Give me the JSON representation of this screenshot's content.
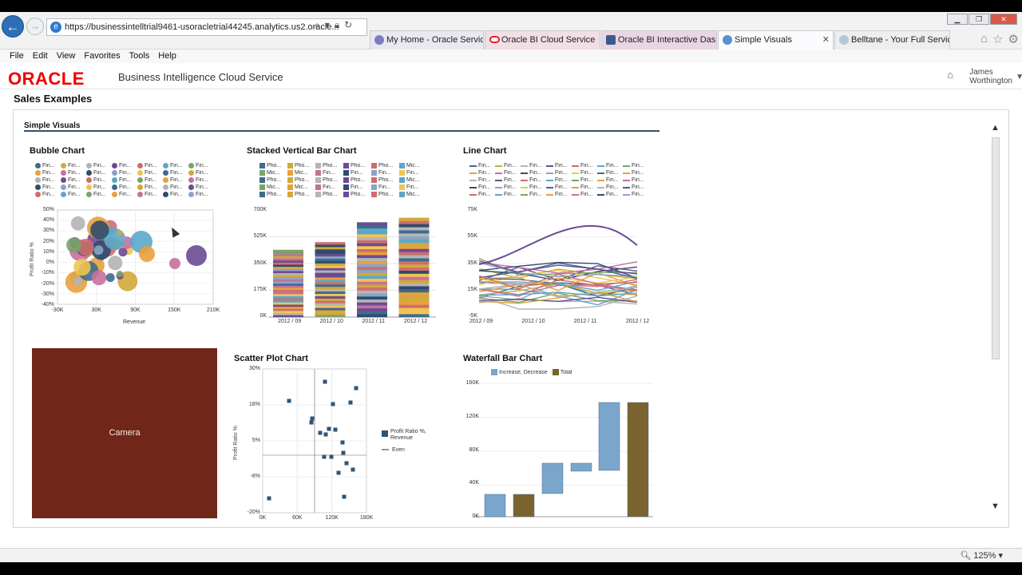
{
  "browser": {
    "url": "https://businessintelltrial9461-usoracletrial44245.analytics.us2.oracle...",
    "tabs": [
      {
        "label": "My Home - Oracle Services",
        "active": false
      },
      {
        "label": "Oracle BI Cloud Service",
        "active": false
      },
      {
        "label": "Oracle BI Interactive Dash...",
        "active": false
      },
      {
        "label": "Simple Visuals",
        "active": true
      },
      {
        "label": "Belltane - Your Full Servic...",
        "active": false
      }
    ],
    "menu": [
      "File",
      "Edit",
      "View",
      "Favorites",
      "Tools",
      "Help"
    ],
    "zoom": "125%"
  },
  "app": {
    "logo": "ORACLE",
    "title": "Business Intelligence Cloud Service",
    "user_first": "James",
    "user_last": "Worthington"
  },
  "page": {
    "title": "Sales Examples",
    "section": "Simple Visuals"
  },
  "bubble": {
    "title": "Bubble Chart",
    "legend_label": "Fin...",
    "xlabel": "Revenue",
    "ylabel": "Profit Ratio %",
    "xticks": [
      "-30K",
      "30K",
      "90K",
      "150K",
      "210K"
    ],
    "yticks": [
      "50%",
      "40%",
      "30%",
      "20%",
      "10%",
      "0%",
      "-10%",
      "-20%",
      "-30%",
      "-40%"
    ]
  },
  "stacked": {
    "title": "Stacked Vertical Bar Chart",
    "legend_labels": [
      "Pho...",
      "Pho...",
      "Pho...",
      "Pho...",
      "Pho...",
      "Mic...",
      "Mic...",
      "Mic...",
      "Fin...",
      "Fin...",
      "Fin...",
      "Fin..."
    ],
    "yticks": [
      "700K",
      "525K",
      "350K",
      "175K",
      "0K"
    ],
    "categories": [
      "2012 / 09",
      "2012 / 10",
      "2012 / 11",
      "2012 / 12"
    ],
    "values": [
      440000,
      490000,
      620000,
      650000
    ]
  },
  "line": {
    "title": "Line Chart",
    "legend_label": "Fin...",
    "yticks": [
      "75K",
      "55K",
      "35K",
      "15K",
      "-5K"
    ],
    "categories": [
      "2012 / 09",
      "2012 / 10",
      "2012 / 11",
      "2012 / 12"
    ]
  },
  "camera": {
    "label": "Camera"
  },
  "scatter": {
    "title": "Scatter Plot Chart",
    "ylabel": "Profit Ratio %",
    "yticks": [
      "30%",
      "18%",
      "5%",
      "-8%",
      "-20%"
    ],
    "xticks": [
      "0K",
      "60K",
      "120K",
      "180K"
    ],
    "legend_series": "Profit Ratio %, Revenue",
    "legend_even": "Even"
  },
  "waterfall": {
    "title": "Waterfall Bar Chart",
    "legend_increase": "Increase, Decrease",
    "legend_total": "Total",
    "yticks": [
      "160K",
      "120K",
      "80K",
      "40K",
      "0K"
    ]
  },
  "colors": {
    "palette": [
      "#3e6b8c",
      "#d1a93a",
      "#b4b4b4",
      "#6a4c93",
      "#cf6d6d",
      "#5ba7c9",
      "#7aa36a",
      "#e9a03d",
      "#c6709c",
      "#2f4c6d",
      "#8aa4c8",
      "#f0c452"
    ],
    "increase": "#7ba6cc",
    "total": "#7b6330",
    "scatter_point": "#2f5575",
    "camera_bg": "#71261a"
  }
}
